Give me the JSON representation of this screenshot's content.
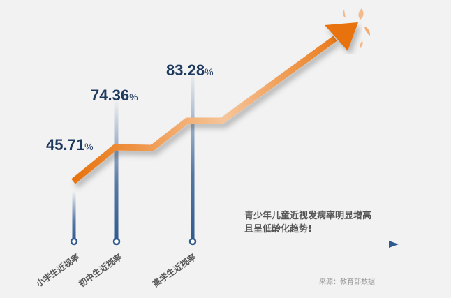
{
  "chart_data": {
    "type": "line",
    "categories": [
      "小学生近视率",
      "初中生近视率",
      "高学生近视率"
    ],
    "values": [
      45.71,
      74.36,
      83.28
    ],
    "value_labels": [
      "45.71",
      "74.36",
      "83.28"
    ],
    "unit": "%",
    "annotation": [
      "青少年儿童近视发病率明显增高",
      "且呈低龄化趋势!"
    ],
    "source": "来源：教育部数据",
    "colors": {
      "bar": "#2f5a8f",
      "trend": "#e8720c",
      "text": "#1f3a5f"
    }
  }
}
